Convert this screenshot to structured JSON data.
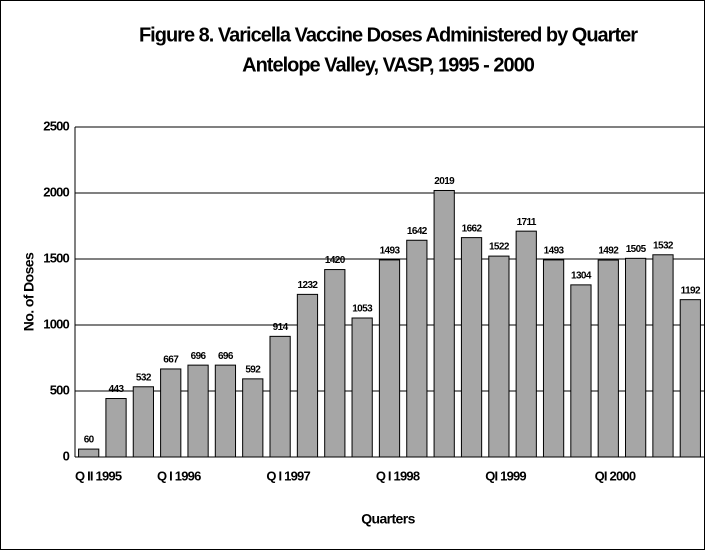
{
  "chart_data": {
    "type": "bar",
    "title": "Figure 8.  Varicella Vaccine Doses Administered by Quarter",
    "subtitle": "Antelope Valley, VASP, 1995 - 2000",
    "x_label": "Quarters",
    "y_label": "No. of Doses",
    "categories": [
      "Q II 1995",
      null,
      null,
      "Q I 1996",
      null,
      null,
      null,
      "Q I 1997",
      null,
      null,
      null,
      "Q I 1998",
      null,
      null,
      null,
      "QI 1999",
      null,
      null,
      null,
      "QI 2000",
      null,
      null,
      null
    ],
    "values": [
      60,
      443,
      532,
      667,
      696,
      696,
      592,
      914,
      1232,
      1420,
      1053,
      1493,
      1642,
      2019,
      1662,
      1522,
      1711,
      1493,
      1304,
      1492,
      1505,
      1532,
      1192
    ],
    "color": "#a6a6a6",
    "ylim": [
      0,
      2500
    ],
    "yticks": [
      0,
      500,
      1000,
      1500,
      2000,
      2500
    ],
    "grid": true
  }
}
